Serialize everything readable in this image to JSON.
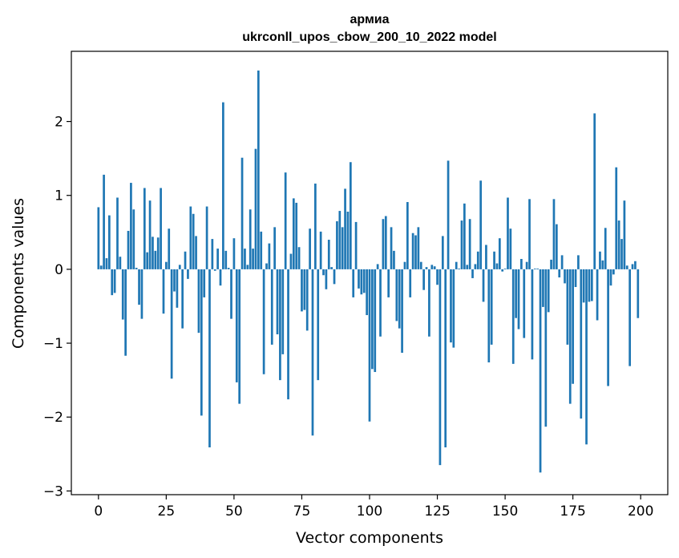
{
  "chart_data": {
    "type": "bar",
    "title_line1": "армиа",
    "title_line2": "ukrconll_upos_cbow_200_10_2022 model",
    "xlabel": "Vector components",
    "ylabel": "Components values",
    "xlim": [
      -10,
      210
    ],
    "ylim": [
      -3.05,
      2.95
    ],
    "xticks": [
      0,
      25,
      50,
      75,
      100,
      125,
      150,
      175,
      200
    ],
    "xtick_labels": [
      "0",
      "25",
      "50",
      "75",
      "100",
      "125",
      "150",
      "175",
      "200"
    ],
    "yticks": [
      -3,
      -2,
      -1,
      0,
      1,
      2
    ],
    "ytick_labels": [
      "−3",
      "−2",
      "−1",
      "0",
      "1",
      "2"
    ],
    "bar_color": "#1f77b4",
    "grid": false,
    "x": [
      0,
      1,
      2,
      3,
      4,
      5,
      6,
      7,
      8,
      9,
      10,
      11,
      12,
      13,
      14,
      15,
      16,
      17,
      18,
      19,
      20,
      21,
      22,
      23,
      24,
      25,
      26,
      27,
      28,
      29,
      30,
      31,
      32,
      33,
      34,
      35,
      36,
      37,
      38,
      39,
      40,
      41,
      42,
      43,
      44,
      45,
      46,
      47,
      48,
      49,
      50,
      51,
      52,
      53,
      54,
      55,
      56,
      57,
      58,
      59,
      60,
      61,
      62,
      63,
      64,
      65,
      66,
      67,
      68,
      69,
      70,
      71,
      72,
      73,
      74,
      75,
      76,
      77,
      78,
      79,
      80,
      81,
      82,
      83,
      84,
      85,
      86,
      87,
      88,
      89,
      90,
      91,
      92,
      93,
      94,
      95,
      96,
      97,
      98,
      99,
      100,
      101,
      102,
      103,
      104,
      105,
      106,
      107,
      108,
      109,
      110,
      111,
      112,
      113,
      114,
      115,
      116,
      117,
      118,
      119,
      120,
      121,
      122,
      123,
      124,
      125,
      126,
      127,
      128,
      129,
      130,
      131,
      132,
      133,
      134,
      135,
      136,
      137,
      138,
      139,
      140,
      141,
      142,
      143,
      144,
      145,
      146,
      147,
      148,
      149,
      150,
      151,
      152,
      153,
      154,
      155,
      156,
      157,
      158,
      159,
      160,
      161,
      162,
      163,
      164,
      165,
      166,
      167,
      168,
      169,
      170,
      171,
      172,
      173,
      174,
      175,
      176,
      177,
      178,
      179,
      180,
      181,
      182,
      183,
      184,
      185,
      186,
      187,
      188,
      189,
      190,
      191,
      192,
      193,
      194,
      195,
      196,
      197,
      198,
      199
    ],
    "values": [
      0.84,
      0.05,
      1.28,
      0.15,
      0.73,
      -0.35,
      -0.32,
      0.97,
      0.17,
      -0.68,
      -1.17,
      0.52,
      1.17,
      0.81,
      0.02,
      -0.48,
      -0.67,
      1.1,
      0.23,
      0.93,
      0.44,
      0.25,
      0.43,
      1.1,
      -0.6,
      0.1,
      0.55,
      -1.48,
      -0.3,
      -0.52,
      0.06,
      -0.8,
      0.24,
      -0.13,
      0.85,
      0.75,
      0.45,
      -0.86,
      -1.98,
      -0.38,
      0.85,
      -2.41,
      0.41,
      -0.02,
      0.28,
      -0.22,
      2.26,
      0.25,
      0.02,
      -0.67,
      0.42,
      -1.53,
      -1.82,
      1.51,
      0.28,
      0.06,
      0.81,
      0.28,
      1.63,
      2.69,
      0.51,
      -1.42,
      0.08,
      0.35,
      -1.02,
      0.57,
      -0.88,
      -1.5,
      -1.15,
      1.31,
      -1.76,
      0.21,
      0.96,
      0.9,
      0.3,
      -0.57,
      -0.55,
      -0.83,
      0.55,
      -2.25,
      1.16,
      -1.5,
      0.51,
      -0.08,
      -0.27,
      0.4,
      0.03,
      -0.2,
      0.65,
      0.79,
      0.57,
      1.09,
      0.78,
      1.45,
      -0.38,
      0.64,
      -0.26,
      -0.34,
      -0.32,
      -0.62,
      -2.06,
      -1.35,
      -1.39,
      0.07,
      -0.91,
      0.68,
      0.72,
      -0.38,
      0.57,
      0.25,
      -0.7,
      -0.8,
      -1.13,
      0.1,
      0.91,
      -0.38,
      0.49,
      0.46,
      0.57,
      0.1,
      -0.28,
      0.03,
      -0.91,
      0.06,
      0.04,
      -0.21,
      -2.65,
      0.45,
      -2.41,
      1.47,
      -0.99,
      -1.06,
      0.1,
      0.01,
      0.66,
      0.89,
      0.06,
      0.68,
      -0.12,
      0.07,
      0.24,
      1.2,
      -0.44,
      0.33,
      -1.26,
      -1.02,
      0.24,
      0.08,
      0.42,
      -0.03,
      0.01,
      0.97,
      0.55,
      -1.28,
      -0.66,
      -0.81,
      0.14,
      -0.93,
      0.1,
      0.95,
      -1.22,
      0.01,
      0.01,
      -2.75,
      -0.51,
      -2.13,
      -0.58,
      0.13,
      0.95,
      0.61,
      -0.11,
      0.19,
      -0.19,
      -1.02,
      -1.82,
      -1.55,
      -0.24,
      0.19,
      -2.02,
      -0.45,
      -2.37,
      -0.44,
      -0.43,
      2.11,
      -0.69,
      0.24,
      0.12,
      0.56,
      -1.58,
      -0.22,
      -0.07,
      1.38,
      0.66,
      0.41,
      0.93,
      0.05,
      -1.31,
      0.07,
      0.11,
      -0.66
    ]
  }
}
